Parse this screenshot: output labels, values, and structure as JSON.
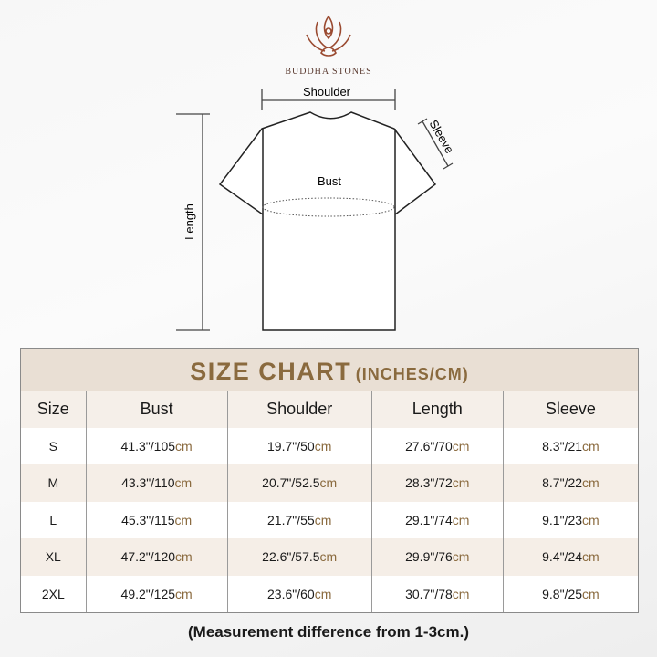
{
  "brand": {
    "name": "BUDDHA STONES",
    "logo": "lotus-meditation-logo",
    "accent": "#8a6a3e"
  },
  "diagram": {
    "shoulder": "Shoulder",
    "sleeve": "Sleeve",
    "bust": "Bust",
    "length": "Length"
  },
  "table": {
    "title": "SIZE CHART",
    "units": "(INCHES/CM)",
    "headers": [
      "Size",
      "Bust",
      "Shoulder",
      "Length",
      "Sleeve"
    ],
    "rows": [
      {
        "size": "S",
        "bust": "41.3\"/105",
        "shoulder": "19.7\"/50",
        "length": "27.6\"/70",
        "sleeve": "8.3\"/21"
      },
      {
        "size": "M",
        "bust": "43.3\"/110",
        "shoulder": "20.7\"/52.5",
        "length": "28.3\"/72",
        "sleeve": "8.7\"/22"
      },
      {
        "size": "L",
        "bust": "45.3\"/115",
        "shoulder": "21.7\"/55",
        "length": "29.1\"/74",
        "sleeve": "9.1\"/23"
      },
      {
        "size": "XL",
        "bust": "47.2\"/120",
        "shoulder": "22.6\"/57.5",
        "length": "29.9\"/76",
        "sleeve": "9.4\"/24"
      },
      {
        "size": "2XL",
        "bust": "49.2\"/125",
        "shoulder": "23.6\"/60",
        "length": "30.7\"/78",
        "sleeve": "9.8\"/25"
      }
    ],
    "unit_suffix": "cm"
  },
  "note": "(Measurement difference from 1-3cm.)"
}
